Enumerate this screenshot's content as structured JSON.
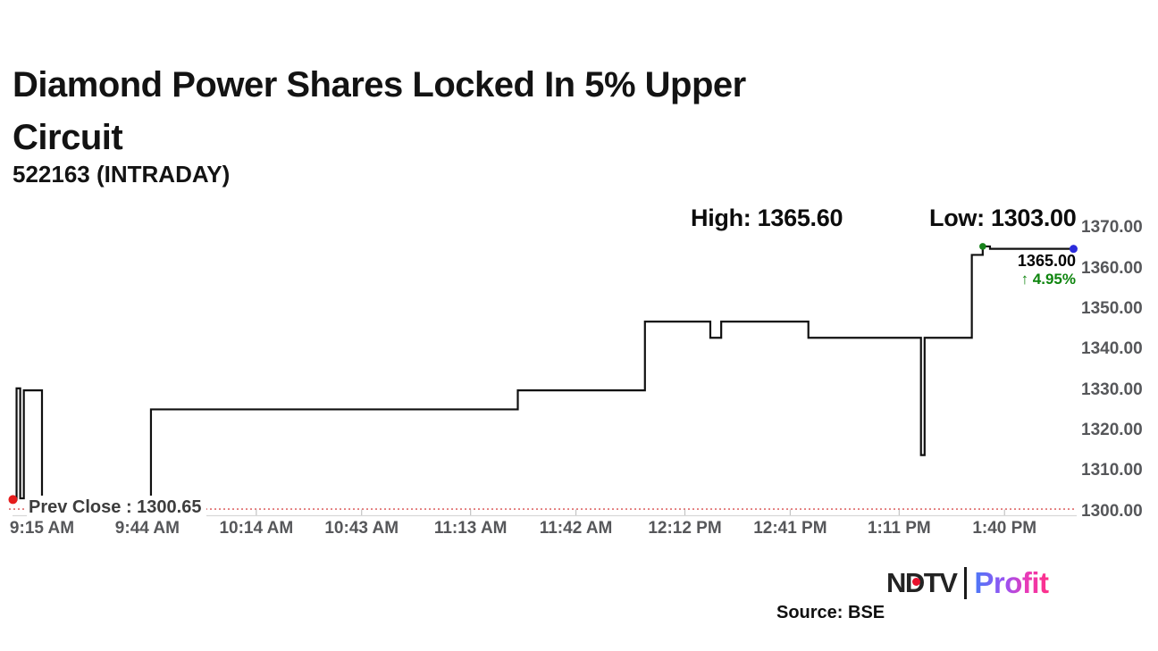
{
  "header": {
    "title_lines": [
      "Diamond Power Shares Locked In 5% Upper",
      "Circuit"
    ],
    "subtitle": "522163 (INTRADAY)"
  },
  "chart_data": {
    "type": "line",
    "title": "Diamond Power Shares Locked In 5% Upper Circuit",
    "symbol": "522163",
    "session": "INTRADAY",
    "high": 1365.6,
    "low": 1303.0,
    "prev_close": 1300.65,
    "high_label": "High: 1365.60",
    "low_label": "Low: 1303.00",
    "prev_close_label": "Prev Close : 1300.65",
    "last_price": "1365.00",
    "change_text": "↑ 4.95%",
    "ylim": [
      1300,
      1370
    ],
    "grid": false,
    "legend_position": "none",
    "y_ticks": [
      "1300.00",
      "1310.00",
      "1320.00",
      "1330.00",
      "1340.00",
      "1350.00",
      "1360.00",
      "1370.00"
    ],
    "x_ticks": [
      "9:15 AM",
      "9:44 AM",
      "10:14 AM",
      "10:43 AM",
      "11:13 AM",
      "11:42 AM",
      "12:12 PM",
      "12:41 PM",
      "1:11 PM",
      "1:40 PM"
    ],
    "series": [
      {
        "t": "09:07",
        "v": 1303.0
      },
      {
        "t": "09:08",
        "v": 1330.5
      },
      {
        "t": "09:09",
        "v": 1303.3
      },
      {
        "t": "09:10",
        "v": 1330.0
      },
      {
        "t": "09:15",
        "v": 1303.3
      },
      {
        "t": "09:45",
        "v": 1325.3
      },
      {
        "t": "11:26",
        "v": 1330.0
      },
      {
        "t": "12:01",
        "v": 1347.0
      },
      {
        "t": "12:19",
        "v": 1343.0
      },
      {
        "t": "12:22",
        "v": 1347.0
      },
      {
        "t": "12:46",
        "v": 1343.0
      },
      {
        "t": "13:17",
        "v": 1314.0
      },
      {
        "t": "13:18",
        "v": 1343.0
      },
      {
        "t": "13:31",
        "v": 1363.5
      },
      {
        "t": "13:34",
        "v": 1365.6
      },
      {
        "t": "13:36",
        "v": 1365.0
      },
      {
        "t": "13:59",
        "v": 1365.0
      }
    ],
    "markers": [
      {
        "t": "09:07",
        "v": 1303.0,
        "color": "#e51c1c",
        "r": 5,
        "name": "session-low-dot"
      },
      {
        "t": "13:34",
        "v": 1365.6,
        "color": "#17821b",
        "r": 3.8,
        "name": "session-high-dot"
      },
      {
        "t": "13:59",
        "v": 1365.0,
        "color": "#2b2bdb",
        "r": 4.5,
        "name": "last-price-dot"
      }
    ],
    "line_color": "#101010",
    "prev_close_line_color": "#d94f4f",
    "up_color": "#0e850e",
    "axis_color": "#d8d8d8",
    "tick_color": "#c4c4c4"
  },
  "footer": {
    "logo_ndtv": "NDTV",
    "logo_profit": "Profit",
    "source": "Source: BSE"
  }
}
